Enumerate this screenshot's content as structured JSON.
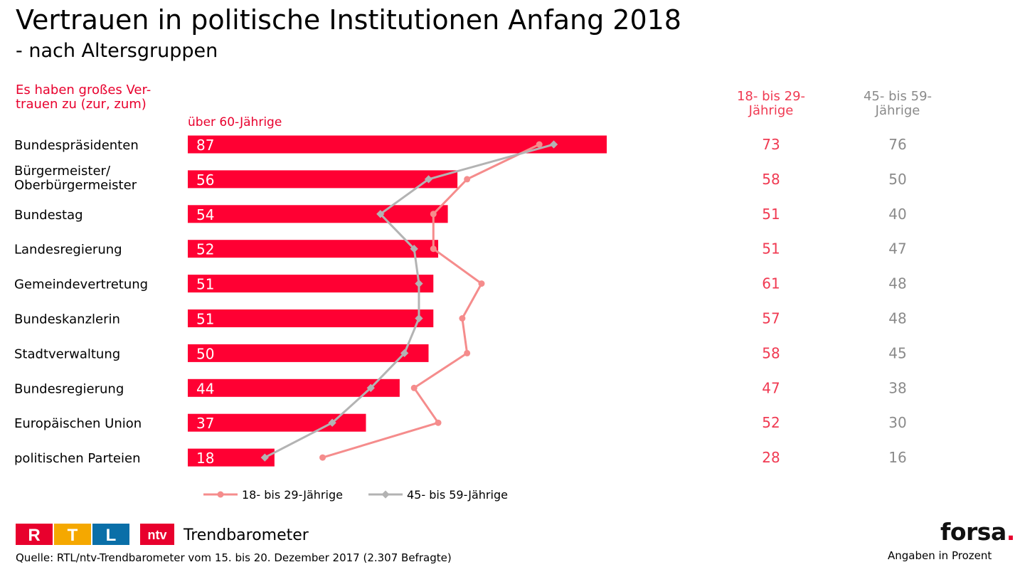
{
  "title": "Vertrauen in politische Institutionen Anfang 2018",
  "subtitle": "- nach Altersgruppen",
  "question": "Es haben großes Ver-\ntrauen zu (zur, zum)",
  "colors": {
    "bar": "#ff0033",
    "line_18_29": "#f58c8c",
    "line_45_59": "#b3b3b3",
    "accent": "#e8002d"
  },
  "chart_data": {
    "type": "bar",
    "orientation": "horizontal",
    "categories": [
      "Bundespräsidenten",
      "Bürgermeister/\nOberbürgermeister",
      "Bundestag",
      "Landesregierung",
      "Gemeindevertretung",
      "Bundeskanzlerin",
      "Stadtverwaltung",
      "Bundesregierung",
      "Europäischen Union",
      "politischen Parteien"
    ],
    "series": [
      {
        "name": "über 60-Jährige",
        "type": "bar",
        "values": [
          87,
          56,
          54,
          52,
          51,
          51,
          50,
          44,
          37,
          18
        ]
      },
      {
        "name": "18- bis 29-Jährige",
        "type": "line",
        "values": [
          73,
          58,
          51,
          51,
          61,
          57,
          58,
          47,
          52,
          28
        ]
      },
      {
        "name": "45- bis 59-Jährige",
        "type": "line",
        "values": [
          76,
          50,
          40,
          47,
          48,
          48,
          45,
          38,
          30,
          16
        ]
      }
    ],
    "column_headers": [
      "18- bis 29-\nJährige",
      "45- bis 59-\nJährige"
    ],
    "legend": [
      "18- bis 29-Jährige",
      "45- bis 59-Jährige"
    ],
    "legend_position": "bottom",
    "xlim": [
      0,
      90
    ],
    "grid": false
  },
  "footer": {
    "logo_rtl": [
      "R",
      "T",
      "L"
    ],
    "logo_ntv": "ntv",
    "brand": "Trendbarometer",
    "source": "Quelle: RTL/ntv-Trendbarometer vom 15. bis 20. Dezember 2017 (2.307 Befragte)",
    "forsa": "forsa",
    "units": "Angaben in Prozent"
  }
}
